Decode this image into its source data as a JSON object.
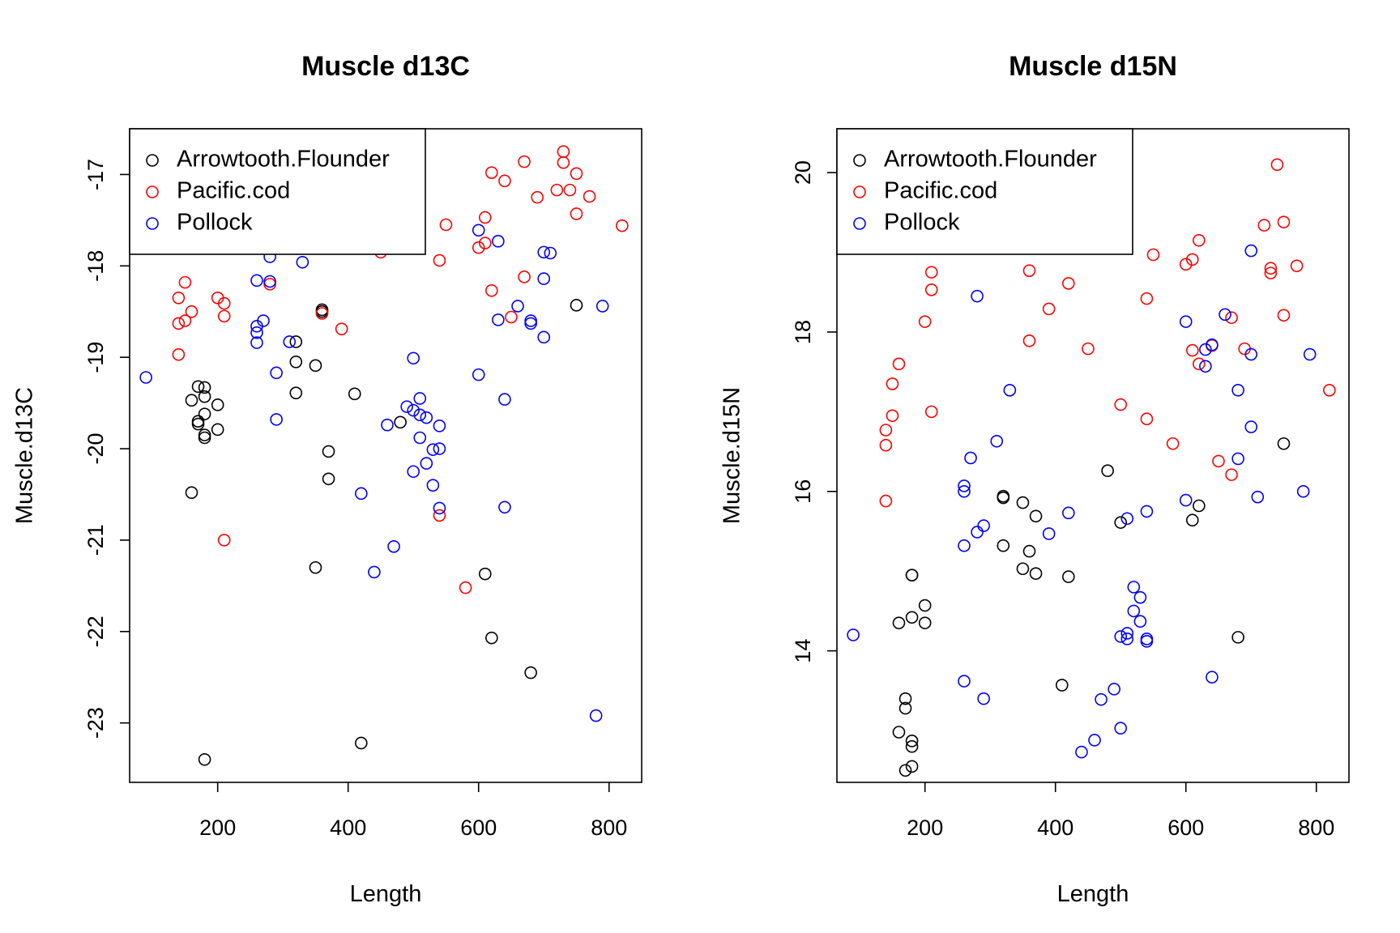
{
  "chart_data": [
    {
      "type": "scatter",
      "title": "Muscle d13C",
      "xlabel": "Length",
      "ylabel": "Muscle.d13C",
      "xlim": [
        65,
        850
      ],
      "ylim": [
        -23.65,
        -16.5
      ],
      "xticks": [
        200,
        400,
        600,
        800
      ],
      "xtick_labels": [
        "200",
        "400",
        "600",
        "800"
      ],
      "yticks": [
        -17,
        -18,
        -19,
        -20,
        -21,
        -22,
        -23
      ],
      "ytick_labels": [
        "-17",
        "-18",
        "-19",
        "-20",
        "-21",
        "-22",
        "-23"
      ],
      "legend_position": "top-left",
      "series": [
        {
          "name": "Arrowtooth.Flounder",
          "color": "#000000",
          "points": [
            [
              170,
              -19.32
            ],
            [
              180,
              -19.33
            ],
            [
              160,
              -19.47
            ],
            [
              180,
              -19.43
            ],
            [
              200,
              -19.52
            ],
            [
              180,
              -19.62
            ],
            [
              170,
              -19.7
            ],
            [
              170,
              -19.73
            ],
            [
              200,
              -19.79
            ],
            [
              180,
              -19.85
            ],
            [
              180,
              -19.88
            ],
            [
              160,
              -20.48
            ],
            [
              180,
              -23.4
            ],
            [
              360,
              -18.48
            ],
            [
              360,
              -18.5
            ],
            [
              320,
              -18.83
            ],
            [
              320,
              -19.05
            ],
            [
              350,
              -19.09
            ],
            [
              320,
              -19.39
            ],
            [
              410,
              -19.4
            ],
            [
              480,
              -19.71
            ],
            [
              370,
              -20.03
            ],
            [
              370,
              -20.33
            ],
            [
              350,
              -21.3
            ],
            [
              420,
              -23.22
            ],
            [
              610,
              -21.37
            ],
            [
              620,
              -22.07
            ],
            [
              680,
              -22.45
            ],
            [
              750,
              -18.43
            ]
          ]
        },
        {
          "name": "Pacific.cod",
          "color": "#ff0000",
          "points": [
            [
              150,
              -18.18
            ],
            [
              140,
              -18.35
            ],
            [
              200,
              -18.35
            ],
            [
              210,
              -18.41
            ],
            [
              160,
              -18.5
            ],
            [
              210,
              -18.55
            ],
            [
              150,
              -18.6
            ],
            [
              140,
              -18.63
            ],
            [
              140,
              -18.97
            ],
            [
              210,
              -21.0
            ],
            [
              280,
              -18.2
            ],
            [
              360,
              -18.52
            ],
            [
              390,
              -18.69
            ],
            [
              450,
              -17.85
            ],
            [
              540,
              -17.94
            ],
            [
              550,
              -17.55
            ],
            [
              540,
              -20.73
            ],
            [
              580,
              -21.52
            ],
            [
              610,
              -17.47
            ],
            [
              600,
              -17.8
            ],
            [
              610,
              -17.75
            ],
            [
              620,
              -16.98
            ],
            [
              640,
              -17.07
            ],
            [
              620,
              -18.27
            ],
            [
              650,
              -18.56
            ],
            [
              670,
              -16.86
            ],
            [
              690,
              -17.25
            ],
            [
              670,
              -18.12
            ],
            [
              720,
              -17.17
            ],
            [
              730,
              -16.75
            ],
            [
              730,
              -16.87
            ],
            [
              740,
              -17.17
            ],
            [
              750,
              -16.99
            ],
            [
              770,
              -17.24
            ],
            [
              750,
              -17.43
            ],
            [
              820,
              -17.56
            ]
          ]
        },
        {
          "name": "Pollock",
          "color": "#0000ff",
          "points": [
            [
              90,
              -19.22
            ],
            [
              260,
              -18.16
            ],
            [
              280,
              -18.17
            ],
            [
              280,
              -17.9
            ],
            [
              270,
              -18.6
            ],
            [
              260,
              -18.66
            ],
            [
              260,
              -18.73
            ],
            [
              260,
              -18.84
            ],
            [
              310,
              -18.83
            ],
            [
              330,
              -17.96
            ],
            [
              290,
              -19.17
            ],
            [
              290,
              -19.68
            ],
            [
              420,
              -20.49
            ],
            [
              440,
              -21.35
            ],
            [
              470,
              -21.07
            ],
            [
              460,
              -19.74
            ],
            [
              490,
              -19.54
            ],
            [
              500,
              -19.58
            ],
            [
              510,
              -19.63
            ],
            [
              510,
              -19.45
            ],
            [
              520,
              -19.66
            ],
            [
              500,
              -19.01
            ],
            [
              540,
              -19.75
            ],
            [
              510,
              -19.88
            ],
            [
              530,
              -20.01
            ],
            [
              540,
              -20.0
            ],
            [
              520,
              -20.16
            ],
            [
              500,
              -20.25
            ],
            [
              530,
              -20.4
            ],
            [
              540,
              -20.65
            ],
            [
              600,
              -17.61
            ],
            [
              630,
              -17.73
            ],
            [
              600,
              -19.19
            ],
            [
              640,
              -19.46
            ],
            [
              640,
              -20.64
            ],
            [
              630,
              -18.59
            ],
            [
              660,
              -18.44
            ],
            [
              680,
              -18.6
            ],
            [
              680,
              -18.63
            ],
            [
              700,
              -17.85
            ],
            [
              710,
              -17.86
            ],
            [
              700,
              -18.14
            ],
            [
              700,
              -18.78
            ],
            [
              790,
              -18.44
            ],
            [
              780,
              -22.92
            ]
          ]
        }
      ]
    },
    {
      "type": "scatter",
      "title": "Muscle d15N",
      "xlabel": "Length",
      "ylabel": "Muscle.d15N",
      "xlim": [
        65,
        850
      ],
      "ylim": [
        12.35,
        20.55
      ],
      "xticks": [
        200,
        400,
        600,
        800
      ],
      "xtick_labels": [
        "200",
        "400",
        "600",
        "800"
      ],
      "yticks": [
        14,
        16,
        18,
        20
      ],
      "ytick_labels": [
        "14",
        "16",
        "18",
        "20"
      ],
      "legend_position": "top-left",
      "series": [
        {
          "name": "Arrowtooth.Flounder",
          "color": "#000000",
          "points": [
            [
              180,
              14.95
            ],
            [
              180,
              14.95
            ],
            [
              200,
              14.57
            ],
            [
              180,
              14.42
            ],
            [
              160,
              14.35
            ],
            [
              200,
              14.35
            ],
            [
              170,
              13.4
            ],
            [
              170,
              13.28
            ],
            [
              160,
              12.98
            ],
            [
              180,
              12.87
            ],
            [
              180,
              12.8
            ],
            [
              180,
              12.55
            ],
            [
              170,
              12.5
            ],
            [
              320,
              15.94
            ],
            [
              320,
              15.92
            ],
            [
              350,
              15.86
            ],
            [
              370,
              15.69
            ],
            [
              320,
              15.32
            ],
            [
              360,
              15.25
            ],
            [
              350,
              15.03
            ],
            [
              370,
              14.97
            ],
            [
              420,
              14.93
            ],
            [
              410,
              13.57
            ],
            [
              480,
              16.26
            ],
            [
              500,
              15.61
            ],
            [
              620,
              15.82
            ],
            [
              610,
              15.64
            ],
            [
              680,
              14.17
            ],
            [
              750,
              16.6
            ]
          ]
        },
        {
          "name": "Pacific.cod",
          "color": "#ff0000",
          "points": [
            [
              210,
              18.75
            ],
            [
              210,
              18.53
            ],
            [
              200,
              18.13
            ],
            [
              160,
              17.6
            ],
            [
              150,
              17.35
            ],
            [
              150,
              16.95
            ],
            [
              210,
              17.0
            ],
            [
              140,
              16.77
            ],
            [
              140,
              16.58
            ],
            [
              140,
              15.88
            ],
            [
              360,
              18.77
            ],
            [
              420,
              18.61
            ],
            [
              390,
              18.29
            ],
            [
              360,
              17.89
            ],
            [
              450,
              17.79
            ],
            [
              540,
              18.42
            ],
            [
              550,
              18.97
            ],
            [
              500,
              17.09
            ],
            [
              540,
              16.91
            ],
            [
              580,
              16.6
            ],
            [
              600,
              18.85
            ],
            [
              610,
              18.91
            ],
            [
              620,
              19.15
            ],
            [
              610,
              17.77
            ],
            [
              620,
              17.6
            ],
            [
              670,
              18.18
            ],
            [
              640,
              17.83
            ],
            [
              650,
              16.38
            ],
            [
              670,
              16.21
            ],
            [
              690,
              17.79
            ],
            [
              720,
              19.34
            ],
            [
              740,
              20.1
            ],
            [
              750,
              19.38
            ],
            [
              730,
              18.8
            ],
            [
              730,
              18.74
            ],
            [
              770,
              18.83
            ],
            [
              750,
              18.21
            ],
            [
              820,
              17.27
            ]
          ]
        },
        {
          "name": "Pollock",
          "color": "#0000ff",
          "points": [
            [
              90,
              14.2
            ],
            [
              280,
              18.45
            ],
            [
              270,
              16.42
            ],
            [
              310,
              16.63
            ],
            [
              330,
              17.27
            ],
            [
              260,
              16.07
            ],
            [
              260,
              16.0
            ],
            [
              290,
              15.57
            ],
            [
              280,
              15.49
            ],
            [
              260,
              15.32
            ],
            [
              260,
              13.62
            ],
            [
              290,
              13.4
            ],
            [
              390,
              15.47
            ],
            [
              420,
              15.73
            ],
            [
              440,
              12.73
            ],
            [
              460,
              12.88
            ],
            [
              470,
              13.39
            ],
            [
              490,
              13.52
            ],
            [
              500,
              13.03
            ],
            [
              500,
              14.18
            ],
            [
              510,
              14.22
            ],
            [
              510,
              14.15
            ],
            [
              540,
              14.15
            ],
            [
              540,
              14.12
            ],
            [
              520,
              14.5
            ],
            [
              530,
              14.37
            ],
            [
              530,
              14.67
            ],
            [
              520,
              14.8
            ],
            [
              510,
              15.66
            ],
            [
              540,
              15.75
            ],
            [
              600,
              18.13
            ],
            [
              600,
              15.89
            ],
            [
              630,
              17.78
            ],
            [
              640,
              17.84
            ],
            [
              630,
              17.57
            ],
            [
              660,
              18.22
            ],
            [
              680,
              17.27
            ],
            [
              700,
              17.72
            ],
            [
              700,
              19.02
            ],
            [
              680,
              16.41
            ],
            [
              700,
              16.81
            ],
            [
              710,
              15.93
            ],
            [
              780,
              16.0
            ],
            [
              790,
              17.72
            ],
            [
              640,
              13.67
            ]
          ]
        }
      ]
    }
  ]
}
